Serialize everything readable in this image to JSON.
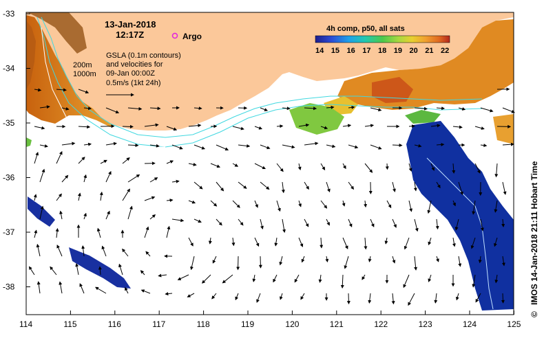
{
  "map_title": {
    "date": "13-Jan-2018",
    "time": "12:17Z"
  },
  "legend": {
    "argo_label": "Argo",
    "argo_color": "#e020e0",
    "isobath_200": "200m",
    "isobath_1000": "1000m",
    "gsla_line1": "GSLA (0.1m contours)",
    "gsla_line2": "and velocities for",
    "gsla_line3": "09-Jan 00:00Z",
    "scale_label": "0.5m/s (1kt 24h)"
  },
  "colorbar": {
    "title": "4h comp, p50, all sats",
    "ticks": [
      "14",
      "15",
      "16",
      "17",
      "18",
      "19",
      "20",
      "21",
      "22"
    ],
    "colors": [
      "#1e1e8c",
      "#2b4cd6",
      "#1fa0e8",
      "#22c8b0",
      "#4cc84c",
      "#a8d840",
      "#e8d030",
      "#f0a030",
      "#e06a20",
      "#b4281e"
    ]
  },
  "axes": {
    "lat_labels": [
      "-33",
      "-34",
      "-35",
      "-36",
      "-37",
      "-38"
    ],
    "lon_labels": [
      "114",
      "115",
      "116",
      "117",
      "118",
      "119",
      "120",
      "121",
      "122",
      "123",
      "124",
      "125"
    ]
  },
  "credit": "IMOS 14-Jan-2018 21:11 Hobart Time",
  "credit_symbol": "©",
  "palette": {
    "land": "#fbc89a",
    "coast_line": "#000000",
    "isobath": "#40d8e0",
    "warm": "#d98a1c",
    "cool_blue": "#1030a0"
  }
}
